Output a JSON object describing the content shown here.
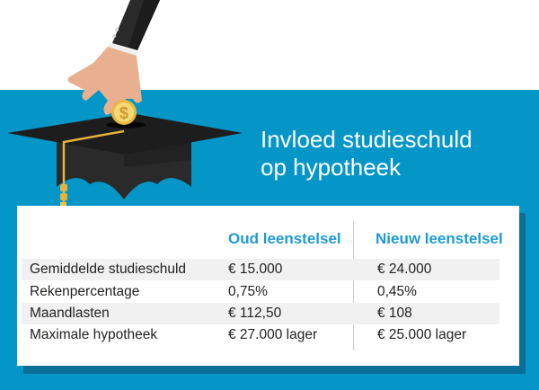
{
  "title": {
    "line1": "Invloed studieschuld",
    "line2": "op hypotheek"
  },
  "colors": {
    "background": "#0596c8",
    "accent": "#1f9bd0",
    "shadow": "#0a6f97",
    "row_alt": "#f1f1f1"
  },
  "table": {
    "headers": [
      "",
      "Oud leenstelsel",
      "Nieuw leenstelsel"
    ],
    "rows": [
      {
        "label": "Gemiddelde studieschuld",
        "oud": "€ 15.000",
        "nieuw": "€ 24.000"
      },
      {
        "label": "Rekenpercentage",
        "oud": "0,75%",
        "nieuw": "0,45%"
      },
      {
        "label": "Maandlasten",
        "oud": "€ 112,50",
        "nieuw": "€ 108"
      },
      {
        "label": "Maximale hypotheek",
        "oud": "€ 27.000 lager",
        "nieuw": "€ 25.000 lager"
      }
    ]
  },
  "illustration": {
    "icons": [
      "hand-icon",
      "coin-dollar-icon",
      "graduation-cap-icon"
    ]
  }
}
